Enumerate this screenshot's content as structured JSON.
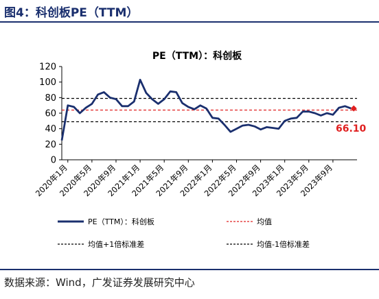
{
  "figure": {
    "title": "图4：科创板PE（TTM）",
    "source": "数据来源：Wind，广发证券发展研究中心"
  },
  "chart_data": {
    "type": "line",
    "title": "PE（TTM）：科创板",
    "xlabel": "",
    "ylabel": "",
    "ylim": [
      0,
      120
    ],
    "yticks": [
      "0",
      "20",
      "40",
      "60",
      "80",
      "100",
      "120"
    ],
    "x_range": [
      "2019-12",
      "2024-01"
    ],
    "xticks": [
      {
        "label": "2020年1月",
        "x": "2020-01"
      },
      {
        "label": "2020年5月",
        "x": "2020-05"
      },
      {
        "label": "2020年9月",
        "x": "2020-09"
      },
      {
        "label": "2021年1月",
        "x": "2021-01"
      },
      {
        "label": "2021年5月",
        "x": "2021-05"
      },
      {
        "label": "2021年9月",
        "x": "2021-09"
      },
      {
        "label": "2022年1月",
        "x": "2022-01"
      },
      {
        "label": "2022年5月",
        "x": "2022-05"
      },
      {
        "label": "2022年9月",
        "x": "2022-09"
      },
      {
        "label": "2023年1月",
        "x": "2023-01"
      },
      {
        "label": "2023年5月",
        "x": "2023-05"
      },
      {
        "label": "2023年9月",
        "x": "2023-09"
      }
    ],
    "series": [
      {
        "name": "PE（TTM）：科创板",
        "color": "#1a2f6e",
        "points": [
          [
            "2019-12",
            25
          ],
          [
            "2020-01",
            70
          ],
          [
            "2020-02",
            68
          ],
          [
            "2020-03",
            60
          ],
          [
            "2020-04",
            67
          ],
          [
            "2020-05",
            72
          ],
          [
            "2020-06",
            84
          ],
          [
            "2020-07",
            87
          ],
          [
            "2020-08",
            80
          ],
          [
            "2020-09",
            78
          ],
          [
            "2020-10",
            69
          ],
          [
            "2020-11",
            69
          ],
          [
            "2020-12",
            75
          ],
          [
            "2021-01",
            103
          ],
          [
            "2021-02",
            86
          ],
          [
            "2021-03",
            78
          ],
          [
            "2021-04",
            72
          ],
          [
            "2021-05",
            78
          ],
          [
            "2021-06",
            88
          ],
          [
            "2021-07",
            87
          ],
          [
            "2021-08",
            73
          ],
          [
            "2021-09",
            68
          ],
          [
            "2021-10",
            65
          ],
          [
            "2021-11",
            70
          ],
          [
            "2021-12",
            66
          ],
          [
            "2022-01",
            54
          ],
          [
            "2022-02",
            53
          ],
          [
            "2022-03",
            45
          ],
          [
            "2022-04",
            36
          ],
          [
            "2022-05",
            40
          ],
          [
            "2022-06",
            44
          ],
          [
            "2022-07",
            45
          ],
          [
            "2022-08",
            43
          ],
          [
            "2022-09",
            39
          ],
          [
            "2022-10",
            42
          ],
          [
            "2022-11",
            41
          ],
          [
            "2022-12",
            40
          ],
          [
            "2023-01",
            50
          ],
          [
            "2023-02",
            53
          ],
          [
            "2023-03",
            54
          ],
          [
            "2023-04",
            62
          ],
          [
            "2023-05",
            62
          ],
          [
            "2023-06",
            60
          ],
          [
            "2023-07",
            57
          ],
          [
            "2023-08",
            60
          ],
          [
            "2023-09",
            58
          ],
          [
            "2023-10",
            67
          ],
          [
            "2023-11",
            69
          ],
          [
            "2023-12",
            66.1
          ]
        ]
      },
      {
        "name": "均值",
        "color": "#e02020",
        "style": "dashed",
        "value": 64
      },
      {
        "name": "均值+1倍标准差",
        "color": "#000000",
        "style": "dashed",
        "value": 79
      },
      {
        "name": "均值-1倍标准差",
        "color": "#000000",
        "style": "dashed",
        "value": 49
      }
    ],
    "latest_label": "66.10",
    "latest_color": "#e02020",
    "grid": false,
    "legend": "bottom"
  }
}
